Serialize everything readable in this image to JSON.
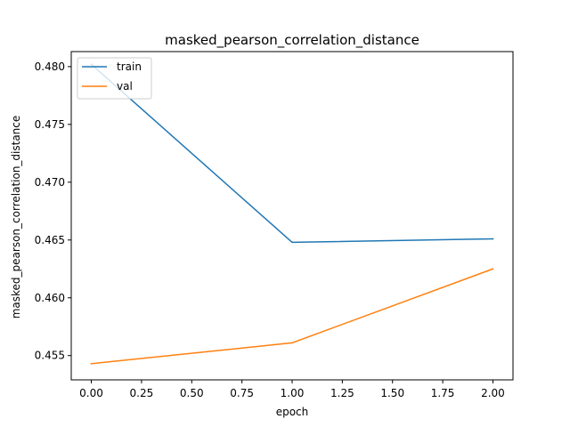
{
  "chart_data": {
    "type": "line",
    "title": "masked_pearson_correlation_distance",
    "xlabel": "epoch",
    "ylabel": "masked_pearson_correlation_distance",
    "xlim": [
      -0.1,
      2.1
    ],
    "ylim": [
      0.4529,
      0.4813
    ],
    "xticks": [
      "0.00",
      "0.25",
      "0.50",
      "0.75",
      "1.00",
      "1.25",
      "1.50",
      "1.75",
      "2.00"
    ],
    "yticks": [
      "0.455",
      "0.460",
      "0.465",
      "0.470",
      "0.475",
      "0.480"
    ],
    "x": [
      0,
      1,
      2
    ],
    "series": [
      {
        "name": "train",
        "color": "#1f77b4",
        "values": [
          0.4802,
          0.4648,
          0.4651
        ]
      },
      {
        "name": "val",
        "color": "#ff7f0e",
        "values": [
          0.4543,
          0.4561,
          0.4625
        ]
      }
    ],
    "legend_position": "upper-left",
    "grid": false
  }
}
